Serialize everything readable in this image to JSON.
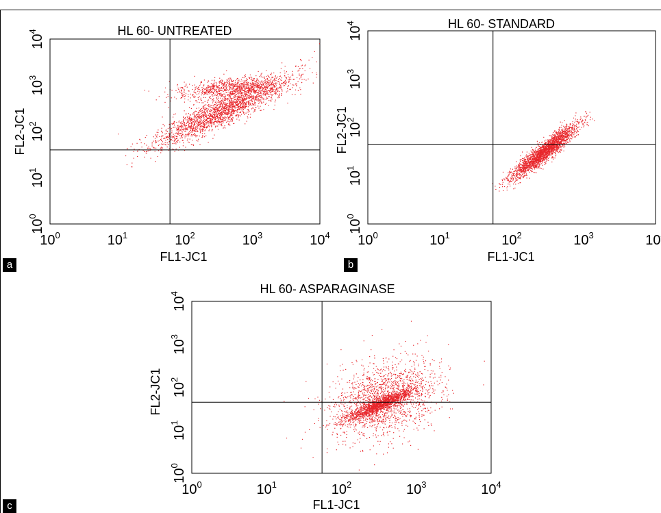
{
  "colors": {
    "dots": "#e8262b",
    "lines": "#000000"
  },
  "panel_labels": [
    "a",
    "b",
    "c"
  ],
  "chart_data": [
    {
      "type": "scatter",
      "title": "HL 60- UNTREATED",
      "xlabel": "FL1-JC1",
      "ylabel": "FL2-JC1",
      "xscale": "log",
      "yscale": "log",
      "xlim": [
        1,
        10000
      ],
      "ylim": [
        1,
        10000
      ],
      "tick_labels": [
        "10^0",
        "10^1",
        "10^2",
        "10^3",
        "10^4"
      ],
      "quadrant_gate": {
        "x": 60,
        "y": 40
      },
      "grid": false,
      "clusters": [
        {
          "center_log": [
            2.55,
            2.45
          ],
          "spread_log": [
            0.5,
            0.38
          ],
          "corr": 0.9,
          "n": 2200
        },
        {
          "center_log": [
            2.7,
            2.95
          ],
          "spread_log": [
            0.4,
            0.12
          ],
          "corr": 0.4,
          "n": 900
        }
      ]
    },
    {
      "type": "scatter",
      "title": "HL 60- STANDARD",
      "xlabel": "FL1-JC1",
      "ylabel": "FL2-JC1",
      "xscale": "log",
      "yscale": "log",
      "xlim": [
        1,
        10000
      ],
      "ylim": [
        1,
        10000
      ],
      "tick_labels": [
        "10^0",
        "10^1",
        "10^2",
        "10^3",
        "10^4"
      ],
      "quadrant_gate": {
        "x": 55,
        "y": 45
      },
      "grid": false,
      "clusters": [
        {
          "center_log": [
            2.45,
            1.5
          ],
          "spread_log": [
            0.23,
            0.28
          ],
          "corr": 0.93,
          "n": 2300
        }
      ]
    },
    {
      "type": "scatter",
      "title": "HL 60- ASPARAGINASE",
      "xlabel": "FL1-JC1",
      "ylabel": "FL2-JC1",
      "xscale": "log",
      "yscale": "log",
      "xlim": [
        1,
        10000
      ],
      "ylim": [
        1,
        10000
      ],
      "tick_labels": [
        "10^0",
        "10^1",
        "10^2",
        "10^3",
        "10^4"
      ],
      "quadrant_gate": {
        "x": 55,
        "y": 45
      },
      "grid": false,
      "clusters": [
        {
          "center_log": [
            2.5,
            1.6
          ],
          "spread_log": [
            0.22,
            0.18
          ],
          "corr": 0.9,
          "n": 1500
        },
        {
          "center_log": [
            2.55,
            1.7
          ],
          "spread_log": [
            0.35,
            0.45
          ],
          "corr": 0.3,
          "n": 1700
        }
      ]
    }
  ]
}
